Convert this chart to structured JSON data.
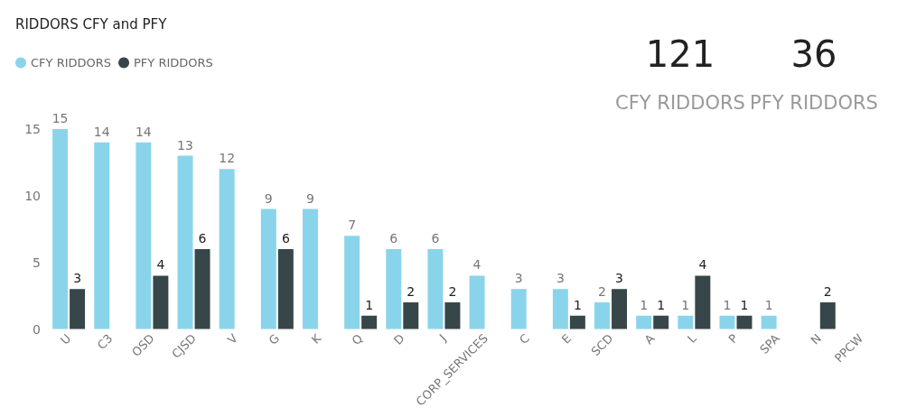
{
  "chart_data": {
    "type": "bar",
    "title": "RIDDORS CFY and PFY",
    "categories": [
      "U",
      "C3",
      "OSD",
      "CJSD",
      "V",
      "G",
      "K",
      "Q",
      "D",
      "J",
      "CORP_SERVICES",
      "C",
      "E",
      "SCD",
      "A",
      "L",
      "P",
      "SPA",
      "N",
      "PPCW"
    ],
    "series": [
      {
        "name": "CFY RIDDORS",
        "color": "#8ad4eb",
        "values": [
          15,
          14,
          14,
          13,
          12,
          9,
          9,
          7,
          6,
          6,
          4,
          3,
          3,
          2,
          1,
          1,
          1,
          1,
          null,
          null
        ]
      },
      {
        "name": "PFY RIDDORS",
        "color": "#374649",
        "values": [
          3,
          null,
          4,
          6,
          null,
          6,
          null,
          1,
          2,
          2,
          null,
          null,
          1,
          3,
          1,
          4,
          1,
          null,
          2,
          null
        ]
      }
    ],
    "ylim": [
      0,
      15
    ],
    "yticks": [
      0,
      5,
      10,
      15
    ],
    "grid": false,
    "legend": "top left",
    "data_labels": true,
    "annotations": [
      "121",
      "CFY RIDDORS",
      "36",
      "PFY RIDDORS"
    ]
  }
}
